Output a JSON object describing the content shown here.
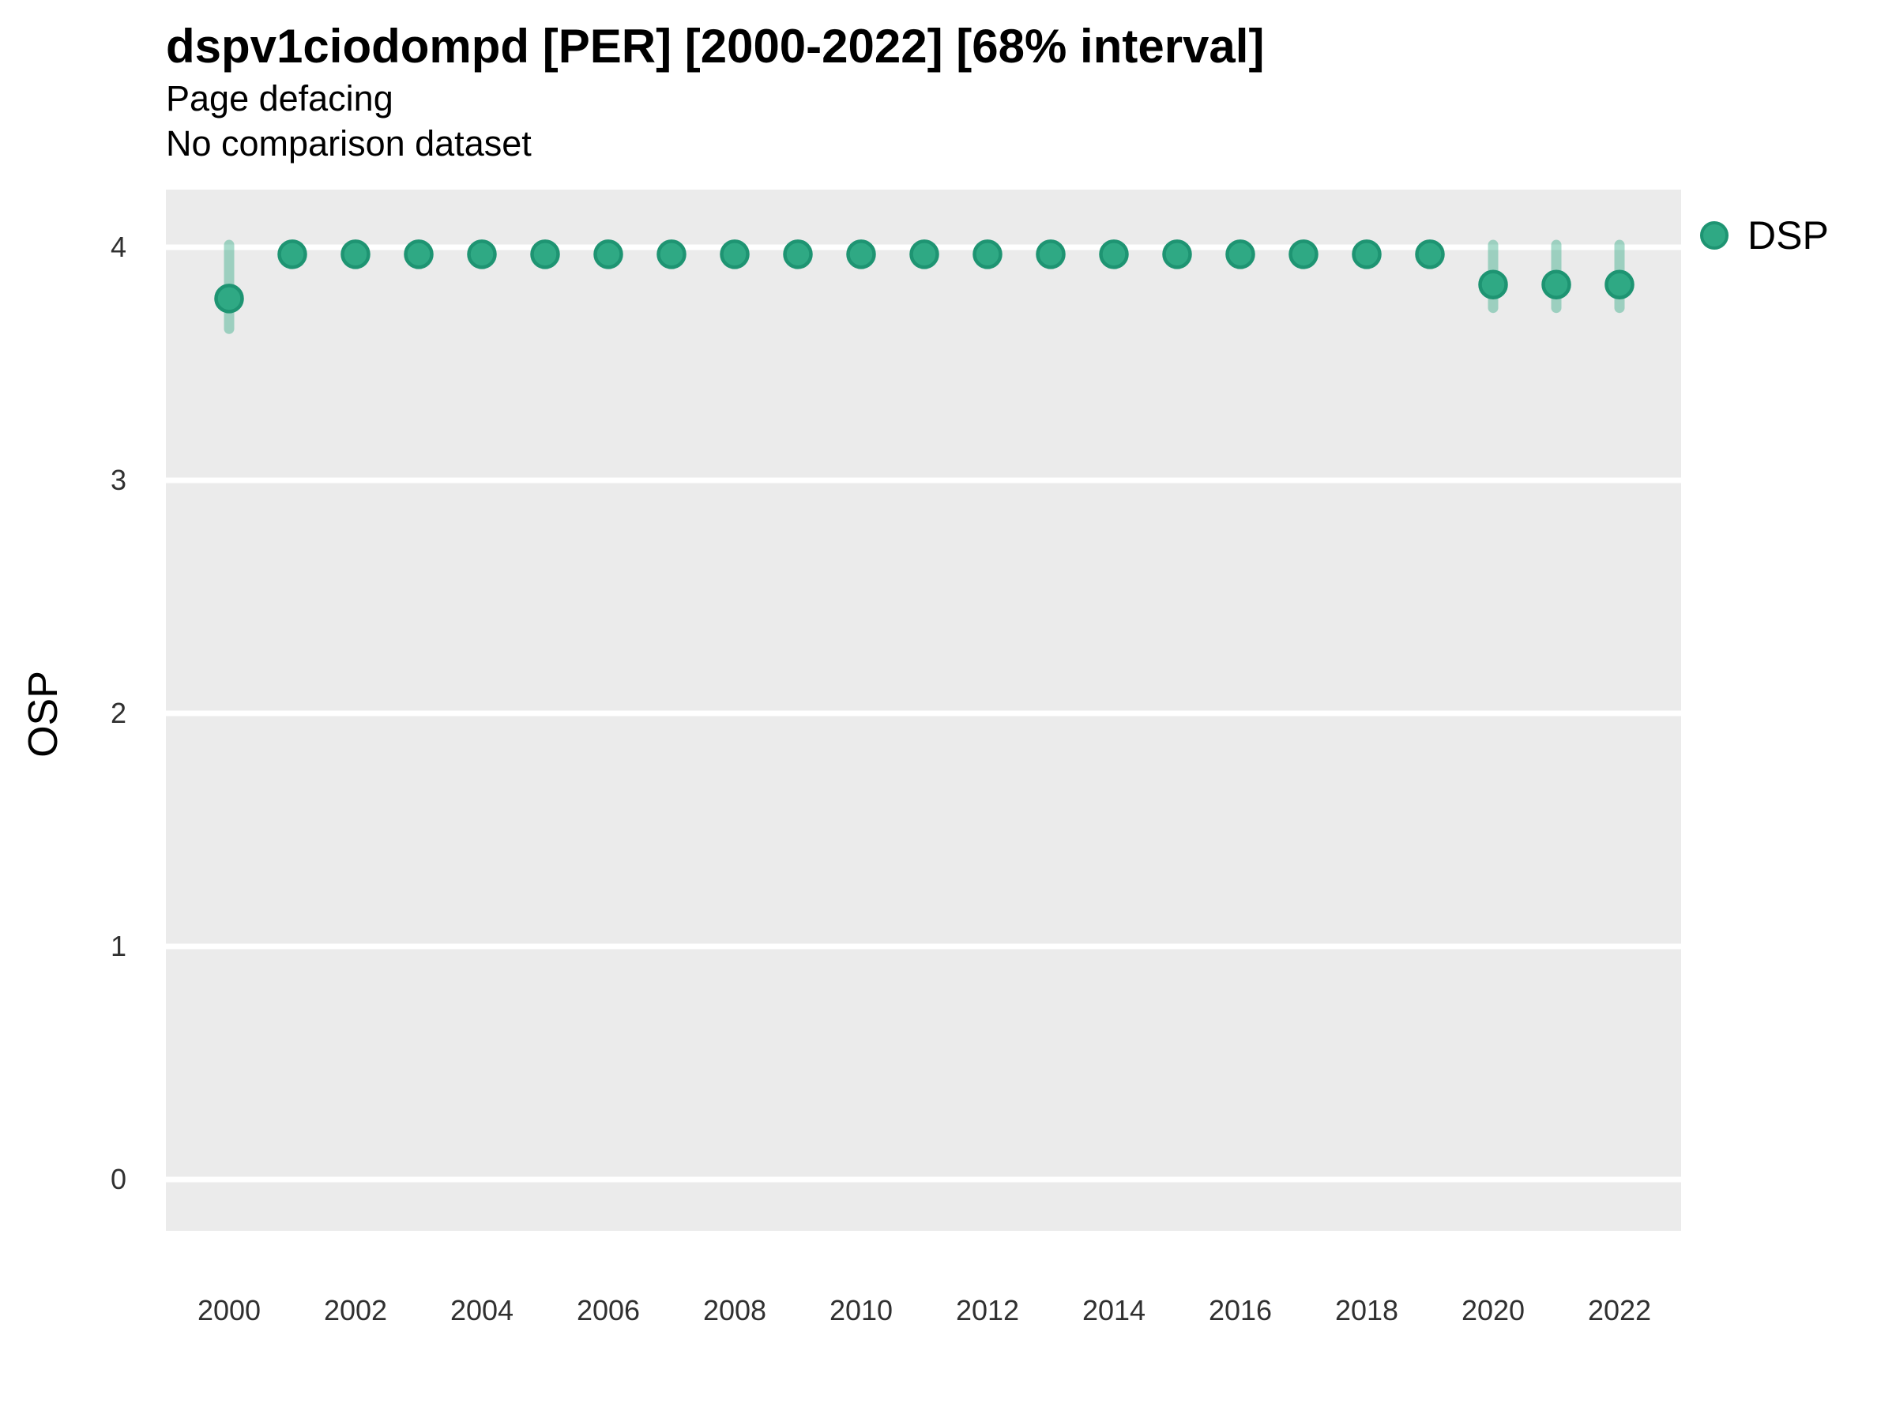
{
  "header": {
    "title": "dspv1ciodompd [PER] [2000-2022] [68% interval]",
    "subtitle1": "Page defacing",
    "subtitle2": "No comparison dataset"
  },
  "y_axis_title": "OSP",
  "legend": {
    "label": "DSP"
  },
  "colors": {
    "point_fill": "#2FA984",
    "point_edge": "#1E9472",
    "interval": "#2FA984",
    "interval_opacity": 0.42,
    "panel_background": "#EBEBEB",
    "gridline": "#FFFFFF",
    "tick_text": "#303030"
  },
  "chart_data": {
    "type": "scatter",
    "title": "dspv1ciodompd [PER] [2000-2022] [68% interval]",
    "subtitle": [
      "Page defacing",
      "No comparison dataset"
    ],
    "xlabel": "",
    "ylabel": "OSP",
    "interval": "68%",
    "legend_entries": [
      "DSP"
    ],
    "legend_position": "right",
    "grid": "horizontal-major-only",
    "x_ticks": [
      2000,
      2002,
      2004,
      2006,
      2008,
      2010,
      2012,
      2014,
      2016,
      2018,
      2020,
      2022
    ],
    "y_ticks": [
      0,
      1,
      2,
      3,
      4
    ],
    "xlim": [
      1999,
      2023
    ],
    "ylim": [
      -0.22,
      4.25
    ],
    "series": [
      {
        "name": "DSP",
        "points": [
          {
            "year": 2000,
            "value": 3.78,
            "lo": 3.65,
            "hi": 4.01
          },
          {
            "year": 2001,
            "value": 3.97,
            "lo": 3.97,
            "hi": 3.97
          },
          {
            "year": 2002,
            "value": 3.97,
            "lo": 3.97,
            "hi": 3.97
          },
          {
            "year": 2003,
            "value": 3.97,
            "lo": 3.97,
            "hi": 3.97
          },
          {
            "year": 2004,
            "value": 3.97,
            "lo": 3.97,
            "hi": 3.97
          },
          {
            "year": 2005,
            "value": 3.97,
            "lo": 3.97,
            "hi": 3.97
          },
          {
            "year": 2006,
            "value": 3.97,
            "lo": 3.97,
            "hi": 3.97
          },
          {
            "year": 2007,
            "value": 3.97,
            "lo": 3.97,
            "hi": 3.97
          },
          {
            "year": 2008,
            "value": 3.97,
            "lo": 3.97,
            "hi": 3.97
          },
          {
            "year": 2009,
            "value": 3.97,
            "lo": 3.97,
            "hi": 3.97
          },
          {
            "year": 2010,
            "value": 3.97,
            "lo": 3.97,
            "hi": 3.97
          },
          {
            "year": 2011,
            "value": 3.97,
            "lo": 3.97,
            "hi": 3.97
          },
          {
            "year": 2012,
            "value": 3.97,
            "lo": 3.97,
            "hi": 3.97
          },
          {
            "year": 2013,
            "value": 3.97,
            "lo": 3.97,
            "hi": 3.97
          },
          {
            "year": 2014,
            "value": 3.97,
            "lo": 3.97,
            "hi": 3.97
          },
          {
            "year": 2015,
            "value": 3.97,
            "lo": 3.97,
            "hi": 3.97
          },
          {
            "year": 2016,
            "value": 3.97,
            "lo": 3.97,
            "hi": 3.97
          },
          {
            "year": 2017,
            "value": 3.97,
            "lo": 3.97,
            "hi": 3.97
          },
          {
            "year": 2018,
            "value": 3.97,
            "lo": 3.97,
            "hi": 3.97
          },
          {
            "year": 2019,
            "value": 3.97,
            "lo": 3.97,
            "hi": 3.97
          },
          {
            "year": 2020,
            "value": 3.84,
            "lo": 3.74,
            "hi": 4.01
          },
          {
            "year": 2021,
            "value": 3.84,
            "lo": 3.74,
            "hi": 4.01
          },
          {
            "year": 2022,
            "value": 3.84,
            "lo": 3.74,
            "hi": 4.01
          }
        ]
      }
    ]
  }
}
